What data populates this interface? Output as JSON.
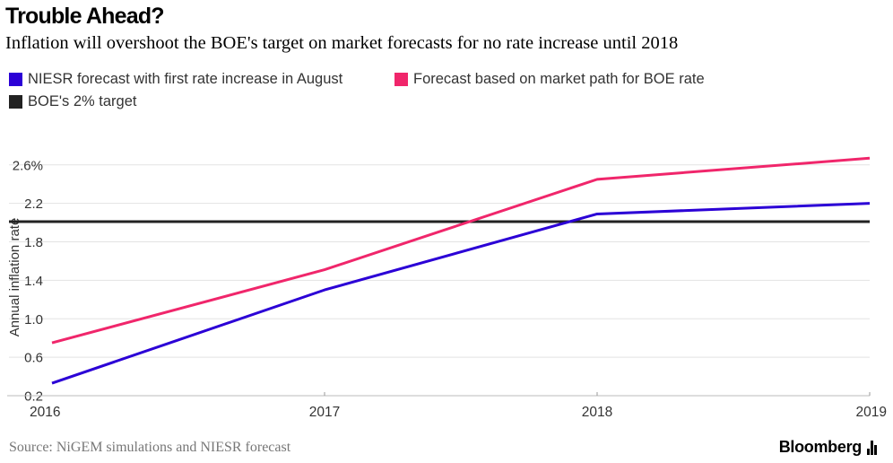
{
  "chart_data": {
    "type": "line",
    "title": "Trouble Ahead?",
    "subtitle": "Inflation will overshoot the BOE's target on market forecasts for no rate increase until 2018",
    "ylabel": "Annual inflation rate",
    "xlabel": "",
    "x": [
      2016,
      2017,
      2018,
      2019
    ],
    "x_tick_labels": [
      "2016",
      "2017",
      "2018",
      "2019"
    ],
    "y_ticks": [
      0.2,
      0.6,
      1.0,
      1.4,
      1.8,
      2.2,
      2.6
    ],
    "y_tick_labels": [
      "0.2",
      "0.6",
      "1.0",
      "1.4",
      "1.8",
      "2.2",
      "2.6%"
    ],
    "ylim": [
      0.2,
      2.85
    ],
    "xlim": [
      2016,
      2019
    ],
    "grid": true,
    "series": [
      {
        "name": "NIESR forecast with first rate increase in August",
        "color": "#2b00d6",
        "x": [
          2016,
          2017,
          2018,
          2019
        ],
        "values": [
          0.33,
          1.3,
          2.09,
          2.2
        ]
      },
      {
        "name": "Forecast based on market path for BOE rate",
        "color": "#f0266b",
        "x": [
          2016,
          2017,
          2018,
          2019
        ],
        "values": [
          0.75,
          1.51,
          2.45,
          2.67
        ]
      },
      {
        "name": "BOE's 2% target",
        "color": "#222222",
        "x": [
          2016,
          2019
        ],
        "values": [
          2.01,
          2.01
        ]
      }
    ],
    "source": "Source: NiGEM simulations and NIESR forecast",
    "brand": "Bloomberg"
  }
}
